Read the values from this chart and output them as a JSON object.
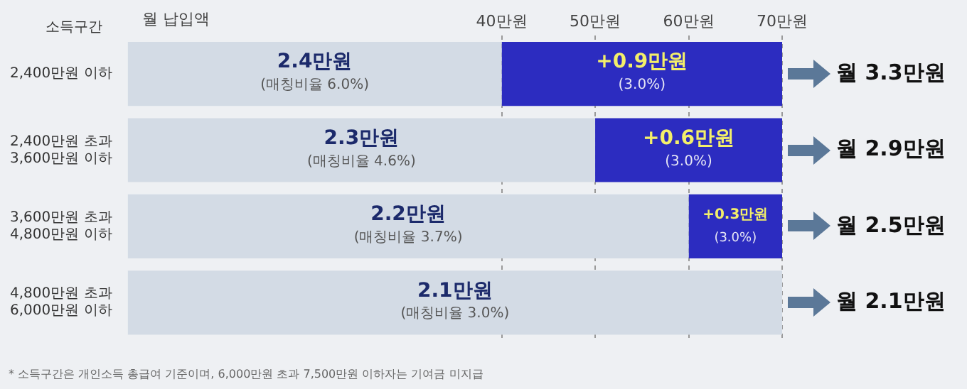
{
  "chart_data": {
    "type": "bar",
    "orientation": "horizontal",
    "stacked": true,
    "xlabel": "월 납입액",
    "ylabel": "소득구간",
    "categories": [
      "2,400만원 이하",
      "2,400만원 초과\n3,600만원 이하",
      "3,600만원 초과\n4,800만원 이하",
      "4,800만원 초과\n6,000만원 이하"
    ],
    "series": [
      {
        "color": "#d3dbe5",
        "values": [
          40,
          50,
          60,
          70
        ]
      },
      {
        "color": "#2c2cc0",
        "values": [
          30,
          20,
          10,
          null
        ]
      }
    ],
    "totals": [
      "월 3.3만원",
      "월 2.9만원",
      "월 2.5만원",
      "월 2.1만원"
    ],
    "xlim": [
      0,
      70
    ],
    "xticks": [
      {
        "value": 40,
        "label": "40만원"
      },
      {
        "value": 50,
        "label": "50만원"
      },
      {
        "value": 60,
        "label": "60만원"
      },
      {
        "value": 70,
        "label": "70만원"
      }
    ],
    "grid": "x",
    "legend": false,
    "annotations": [
      {
        "text": "2.4만원\n(매칭비율 6.0%)",
        "x": 20,
        "y": "2,400만원 이하"
      },
      {
        "text": "+0.9만원\n(3.0%)",
        "x": 55,
        "y": "2,400만원 이하"
      },
      {
        "text": "2.3만원\n(매칭비율 4.6%)",
        "x": 25,
        "y": "2,400만원 초과\n3,600만원 이하"
      },
      {
        "text": "+0.6만원\n(3.0%)",
        "x": 60,
        "y": "2,400만원 초과\n3,600만원 이하"
      },
      {
        "text": "2.2만원\n(매칭비율 3.7%)",
        "x": 30,
        "y": "3,600만원 초과\n4,800만원 이하"
      },
      {
        "text": "+0.3만원\n(3.0%)",
        "x": 65,
        "y": "3,600만원 초과\n4,800만원 이하"
      },
      {
        "text": "2.1만원\n(매칭비율 3.0%)",
        "x": 35,
        "y": "4,800만원 초과\n6,000만원 이하"
      },
      "* 소득구간은 개인소득 총급여 기준이며, 6,000만원 초과 7,500만원 이하자는 기여금 미지급"
    ]
  }
}
